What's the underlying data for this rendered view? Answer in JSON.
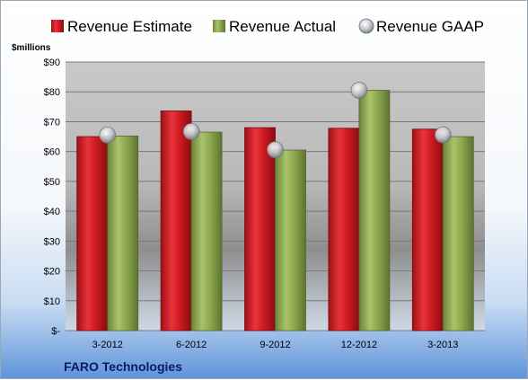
{
  "chart_data": {
    "type": "bar",
    "title": "",
    "ylabel": "$millions",
    "xlabel": "",
    "categories": [
      "3-2012",
      "6-2012",
      "9-2012",
      "12-2012",
      "3-2013"
    ],
    "series": [
      {
        "name": "Revenue Estimate",
        "type": "bar",
        "color": "#d01c22",
        "values": [
          65,
          73.6,
          68,
          67.8,
          67.5
        ]
      },
      {
        "name": "Revenue Actual",
        "type": "bar",
        "color": "#8eaa4f",
        "values": [
          65.2,
          66.5,
          60.5,
          80.5,
          65
        ]
      },
      {
        "name": "Revenue GAAP",
        "type": "marker",
        "color": "#c5c9cf",
        "values": [
          65.5,
          66.7,
          60.6,
          80.5,
          65.6
        ]
      }
    ],
    "ylim": [
      0,
      90
    ],
    "yticks": [
      0,
      10,
      20,
      30,
      40,
      50,
      60,
      70,
      80,
      90
    ],
    "ytick_labels": [
      "$-",
      "$10",
      "$20",
      "$30",
      "$40",
      "$50",
      "$60",
      "$70",
      "$80",
      "$90"
    ],
    "grid": true,
    "legend": "top"
  },
  "footer": {
    "company": "FARO Technologies"
  }
}
